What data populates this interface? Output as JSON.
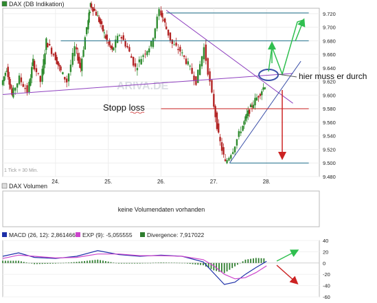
{
  "price_panel": {
    "legend_label": "DAX (DB Indikation)",
    "interval_note": "1 Tick = 30 Min.",
    "watermark": "ARIVA.DE",
    "annotations": {
      "must_break": "hier muss er durch",
      "stop_loss": "Stopp loss"
    },
    "colors": {
      "up_candle": "#2e8b2e",
      "down_candle": "#b22222",
      "support_line": "#8e3fbf",
      "horizontal_lines": "#1f6f8b",
      "stop_line": "#cc2222",
      "target_arrows": "#2fbf4f",
      "triangle_lines": "#3a4fa8"
    }
  },
  "volume_panel": {
    "legend_label": "DAX Volumen",
    "no_data_text": "keine Volumendaten vorhanden"
  },
  "macd_panel": {
    "legend": [
      {
        "label": "MACD (26, 12): 2,861466",
        "color": "#1c2fa8"
      },
      {
        "label": "EXP (9): -5,055555",
        "color": "#cc44cc"
      },
      {
        "label": "Divergence: 7,917022",
        "color": "#2e7d2e"
      }
    ]
  },
  "chart_data": [
    {
      "type": "line",
      "panel": "price",
      "title": "DAX (DB Indikation)",
      "x_tick_labels": [
        "24.",
        "25.",
        "26.",
        "27.",
        "28."
      ],
      "y_tick_labels": [
        "9.480",
        "9.500",
        "9.520",
        "9.540",
        "9.560",
        "9.580",
        "9.600",
        "9.620",
        "9.640",
        "9.660",
        "9.680",
        "9.700",
        "9.720"
      ],
      "ylim": [
        9480,
        9728
      ],
      "xlim": [
        23.0,
        29.0
      ],
      "price_path": [
        [
          23.0,
          9615
        ],
        [
          23.1,
          9640
        ],
        [
          23.2,
          9600
        ],
        [
          23.35,
          9625
        ],
        [
          23.5,
          9605
        ],
        [
          23.6,
          9650
        ],
        [
          23.75,
          9620
        ],
        [
          23.85,
          9680
        ],
        [
          24.0,
          9660
        ],
        [
          24.1,
          9640
        ],
        [
          24.25,
          9620
        ],
        [
          24.4,
          9670
        ],
        [
          24.5,
          9640
        ],
        [
          24.62,
          9700
        ],
        [
          24.68,
          9735
        ],
        [
          24.8,
          9720
        ],
        [
          24.9,
          9700
        ],
        [
          25.0,
          9680
        ],
        [
          25.1,
          9665
        ],
        [
          25.25,
          9690
        ],
        [
          25.4,
          9670
        ],
        [
          25.55,
          9640
        ],
        [
          25.7,
          9660
        ],
        [
          25.85,
          9675
        ],
        [
          26.0,
          9725
        ],
        [
          26.1,
          9705
        ],
        [
          26.25,
          9675
        ],
        [
          26.4,
          9665
        ],
        [
          26.55,
          9645
        ],
        [
          26.7,
          9620
        ],
        [
          26.85,
          9670
        ],
        [
          27.0,
          9600
        ],
        [
          27.12,
          9540
        ],
        [
          27.25,
          9500
        ],
        [
          27.4,
          9520
        ],
        [
          27.55,
          9550
        ],
        [
          27.65,
          9570
        ],
        [
          27.75,
          9585
        ],
        [
          27.88,
          9600
        ],
        [
          28.0,
          9615
        ]
      ],
      "lines": [
        {
          "name": "support",
          "points": [
            [
              23.0,
              9601
            ],
            [
              28.5,
              9632
            ]
          ]
        },
        {
          "name": "upper_trend",
          "points": [
            [
              26.1,
              9725
            ],
            [
              28.5,
              9588
            ]
          ]
        },
        {
          "name": "lower_trend",
          "points": [
            [
              27.3,
              9500
            ],
            [
              28.65,
              9650
            ]
          ]
        },
        {
          "name": "horizontal_9680",
          "points": [
            [
              24.1,
              9680
            ],
            [
              28.8,
              9680
            ]
          ]
        },
        {
          "name": "horizontal_9720",
          "points": [
            [
              26.1,
              9721
            ],
            [
              28.8,
              9721
            ]
          ]
        },
        {
          "name": "stop_9580",
          "points": [
            [
              26.0,
              9580
            ],
            [
              28.8,
              9580
            ]
          ]
        },
        {
          "name": "target_9500",
          "points": [
            [
              27.3,
              9500
            ],
            [
              28.8,
              9500
            ]
          ]
        }
      ]
    },
    {
      "type": "line",
      "panel": "macd",
      "y_tick_labels": [
        "-60",
        "-40",
        "-20",
        "0",
        "20",
        "40"
      ],
      "ylim": [
        -60,
        40
      ],
      "series": [
        {
          "name": "MACD (26, 12)",
          "x": [
            23.0,
            23.3,
            23.6,
            24.0,
            24.4,
            24.8,
            25.2,
            25.6,
            26.0,
            26.4,
            26.8,
            27.0,
            27.2,
            27.4,
            27.6,
            27.8,
            28.0
          ],
          "values": [
            12,
            18,
            10,
            8,
            12,
            22,
            15,
            12,
            14,
            12,
            2,
            -18,
            -38,
            -34,
            -20,
            -8,
            3
          ]
        },
        {
          "name": "EXP (9)",
          "x": [
            23.0,
            23.3,
            23.6,
            24.0,
            24.4,
            24.8,
            25.2,
            25.6,
            26.0,
            26.4,
            26.8,
            27.0,
            27.2,
            27.4,
            27.6,
            27.8,
            28.0
          ],
          "values": [
            8,
            14,
            12,
            9,
            10,
            16,
            16,
            13,
            13,
            12,
            6,
            -5,
            -20,
            -28,
            -26,
            -17,
            -5
          ]
        },
        {
          "name": "Divergence",
          "x": [
            23.0,
            23.3,
            23.6,
            24.0,
            24.4,
            24.8,
            25.2,
            25.6,
            26.0,
            26.4,
            26.8,
            27.0,
            27.2,
            27.4,
            27.6,
            27.8,
            28.0
          ],
          "values": [
            4,
            4,
            -2,
            -1,
            2,
            6,
            -1,
            -1,
            1,
            0,
            -4,
            -13,
            -18,
            -6,
            6,
            9,
            8
          ]
        }
      ]
    }
  ]
}
